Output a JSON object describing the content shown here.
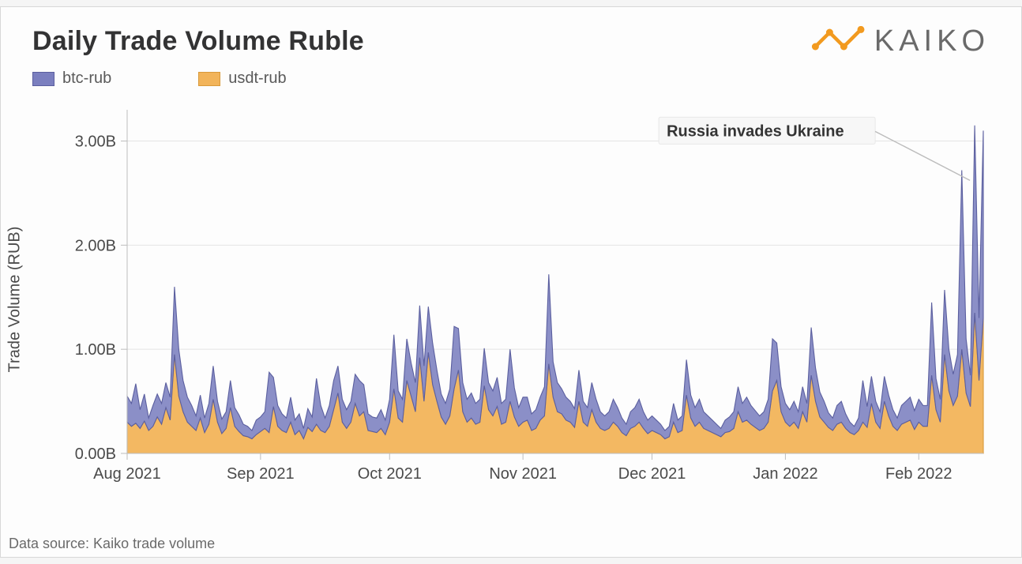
{
  "title": "Daily Trade Volume Ruble",
  "logo_text": "KAIKO",
  "logo_color": "#f29a1f",
  "legend": [
    {
      "label": "btc-rub",
      "fill": "#7b7fbf",
      "stroke": "#5b5f9f"
    },
    {
      "label": "usdt-rub",
      "fill": "#f2b45a",
      "stroke": "#d99a3a"
    }
  ],
  "source_text": "Data source: Kaiko trade volume",
  "annotation": {
    "text": "Russia invades Ukraine",
    "x_index": 197,
    "y_value": 2.85
  },
  "chart": {
    "type": "area-stacked",
    "ylabel": "Trade Volume (RUB)",
    "background_color": "#fdfdfd",
    "grid_color": "#e4e4e4",
    "axis_color": "#bdbdbd",
    "label_fontsize": 20,
    "tick_fontsize": 20,
    "ylim": [
      0,
      3.3
    ],
    "yticks": [
      0,
      1,
      2,
      3
    ],
    "ytick_labels": [
      "0.00B",
      "1.00B",
      "2.00B",
      "3.00B"
    ],
    "xtick_indices": [
      0,
      31,
      61,
      92,
      122,
      153,
      184
    ],
    "xtick_labels": [
      "Aug 2021",
      "Sep 2021",
      "Oct 2021",
      "Nov 2021",
      "Dec 2021",
      "Jan 2022",
      "Feb 2022"
    ],
    "n_points": 200,
    "usdt_rub": [
      0.3,
      0.26,
      0.29,
      0.24,
      0.31,
      0.22,
      0.26,
      0.35,
      0.28,
      0.44,
      0.32,
      0.95,
      0.55,
      0.4,
      0.3,
      0.26,
      0.22,
      0.34,
      0.2,
      0.28,
      0.52,
      0.3,
      0.19,
      0.24,
      0.44,
      0.26,
      0.21,
      0.17,
      0.16,
      0.14,
      0.18,
      0.21,
      0.24,
      0.2,
      0.45,
      0.26,
      0.22,
      0.2,
      0.3,
      0.18,
      0.22,
      0.14,
      0.25,
      0.21,
      0.28,
      0.22,
      0.2,
      0.26,
      0.42,
      0.58,
      0.3,
      0.24,
      0.3,
      0.48,
      0.36,
      0.4,
      0.22,
      0.21,
      0.2,
      0.24,
      0.18,
      0.3,
      0.62,
      0.34,
      0.3,
      0.7,
      0.55,
      0.4,
      0.92,
      0.5,
      0.97,
      0.66,
      0.5,
      0.35,
      0.28,
      0.36,
      0.62,
      0.8,
      0.4,
      0.3,
      0.34,
      0.28,
      0.3,
      0.65,
      0.42,
      0.36,
      0.45,
      0.28,
      0.3,
      0.5,
      0.35,
      0.26,
      0.3,
      0.32,
      0.22,
      0.24,
      0.32,
      0.36,
      0.86,
      0.54,
      0.4,
      0.38,
      0.32,
      0.3,
      0.25,
      0.5,
      0.3,
      0.26,
      0.42,
      0.3,
      0.24,
      0.22,
      0.24,
      0.3,
      0.26,
      0.2,
      0.17,
      0.24,
      0.26,
      0.3,
      0.24,
      0.19,
      0.22,
      0.2,
      0.18,
      0.14,
      0.16,
      0.3,
      0.2,
      0.22,
      0.56,
      0.34,
      0.26,
      0.3,
      0.24,
      0.22,
      0.2,
      0.18,
      0.16,
      0.2,
      0.21,
      0.24,
      0.4,
      0.3,
      0.32,
      0.28,
      0.25,
      0.22,
      0.24,
      0.3,
      0.6,
      0.7,
      0.4,
      0.3,
      0.26,
      0.3,
      0.24,
      0.4,
      0.3,
      0.75,
      0.5,
      0.35,
      0.3,
      0.25,
      0.22,
      0.28,
      0.3,
      0.24,
      0.2,
      0.18,
      0.22,
      0.3,
      0.25,
      0.48,
      0.3,
      0.24,
      0.5,
      0.36,
      0.26,
      0.22,
      0.28,
      0.3,
      0.32,
      0.23,
      0.3,
      0.26,
      0.26,
      0.75,
      0.42,
      0.3,
      0.95,
      0.6,
      0.46,
      0.55,
      1.0,
      0.58,
      0.45,
      1.35,
      0.7,
      1.3
    ],
    "btc_rub": [
      0.25,
      0.22,
      0.38,
      0.18,
      0.26,
      0.12,
      0.2,
      0.22,
      0.2,
      0.24,
      0.22,
      0.65,
      0.45,
      0.3,
      0.24,
      0.2,
      0.14,
      0.22,
      0.14,
      0.2,
      0.32,
      0.2,
      0.14,
      0.16,
      0.26,
      0.18,
      0.16,
      0.11,
      0.1,
      0.08,
      0.14,
      0.14,
      0.16,
      0.58,
      0.28,
      0.2,
      0.16,
      0.14,
      0.24,
      0.14,
      0.16,
      0.1,
      0.18,
      0.14,
      0.44,
      0.24,
      0.14,
      0.2,
      0.28,
      0.26,
      0.22,
      0.18,
      0.2,
      0.28,
      0.34,
      0.26,
      0.16,
      0.14,
      0.14,
      0.18,
      0.14,
      0.22,
      0.52,
      0.26,
      0.22,
      0.4,
      0.32,
      0.28,
      0.5,
      0.34,
      0.44,
      0.4,
      0.3,
      0.22,
      0.2,
      0.26,
      0.6,
      0.4,
      0.28,
      0.22,
      0.24,
      0.2,
      0.22,
      0.36,
      0.26,
      0.24,
      0.28,
      0.2,
      0.22,
      0.5,
      0.28,
      0.18,
      0.24,
      0.22,
      0.16,
      0.18,
      0.22,
      0.28,
      0.86,
      0.34,
      0.28,
      0.24,
      0.22,
      0.2,
      0.18,
      0.3,
      0.2,
      0.18,
      0.26,
      0.22,
      0.16,
      0.14,
      0.16,
      0.22,
      0.18,
      0.14,
      0.11,
      0.16,
      0.18,
      0.22,
      0.16,
      0.13,
      0.14,
      0.12,
      0.1,
      0.08,
      0.1,
      0.18,
      0.12,
      0.14,
      0.34,
      0.22,
      0.18,
      0.22,
      0.16,
      0.14,
      0.12,
      0.1,
      0.08,
      0.12,
      0.14,
      0.16,
      0.24,
      0.18,
      0.22,
      0.18,
      0.16,
      0.14,
      0.16,
      0.22,
      0.5,
      0.36,
      0.24,
      0.18,
      0.16,
      0.2,
      0.16,
      0.24,
      0.18,
      0.46,
      0.32,
      0.24,
      0.2,
      0.14,
      0.12,
      0.18,
      0.2,
      0.14,
      0.1,
      0.08,
      0.12,
      0.4,
      0.2,
      0.26,
      0.2,
      0.16,
      0.24,
      0.2,
      0.16,
      0.12,
      0.18,
      0.2,
      0.22,
      0.18,
      0.22,
      0.2,
      0.2,
      0.7,
      0.3,
      0.22,
      0.62,
      0.4,
      0.3,
      0.4,
      1.72,
      0.52,
      0.3,
      1.8,
      0.6,
      1.8
    ]
  }
}
